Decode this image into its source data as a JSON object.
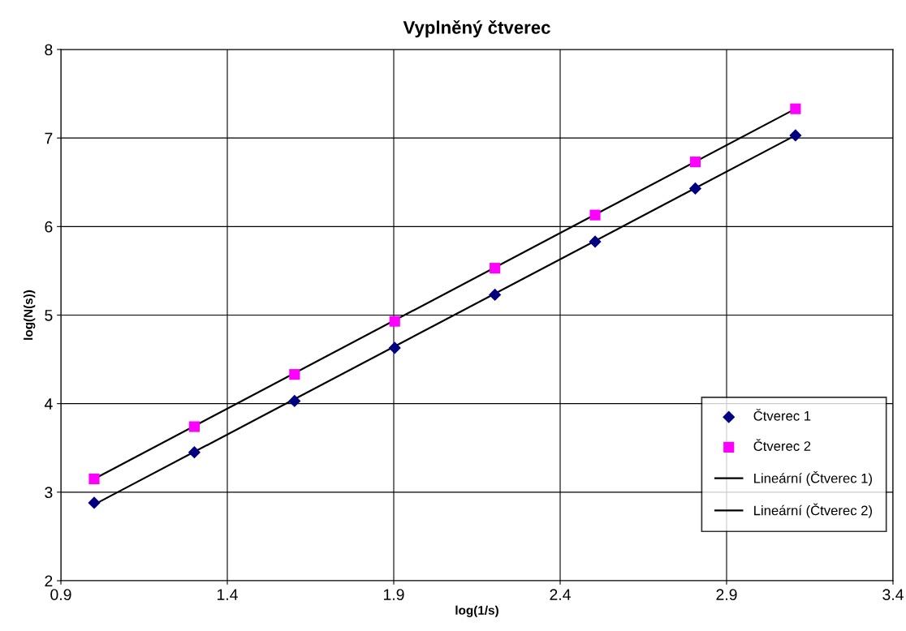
{
  "chart_data": {
    "type": "scatter",
    "title": "Vyplněný čtverec",
    "xlabel": "log(1/s)",
    "ylabel": "log(N(s))",
    "xlim": [
      0.9,
      3.4
    ],
    "xticks": [
      0.9,
      1.4,
      1.9,
      2.4,
      2.9,
      3.4
    ],
    "ylim": [
      2,
      8
    ],
    "yticks": [
      2,
      3,
      4,
      5,
      6,
      7,
      8
    ],
    "grid": true,
    "legend": "bottom right",
    "series": [
      {
        "name": "Čtverec 1",
        "marker": "diamond",
        "color": "#000080",
        "x": [
          1.0,
          1.301,
          1.602,
          1.903,
          2.204,
          2.505,
          2.806,
          3.107
        ],
        "values": [
          2.88,
          3.45,
          4.03,
          4.63,
          5.23,
          5.83,
          6.43,
          7.03
        ]
      },
      {
        "name": "Čtverec 2",
        "marker": "square",
        "color": "#ff00ff",
        "x": [
          1.0,
          1.301,
          1.602,
          1.903,
          2.204,
          2.505,
          2.806,
          3.107
        ],
        "values": [
          3.15,
          3.74,
          4.33,
          4.93,
          5.53,
          6.13,
          6.73,
          7.33
        ]
      },
      {
        "name": "Lineární (Čtverec 1)",
        "type": "line",
        "color": "#000000",
        "x": [
          1.0,
          3.107
        ],
        "values": [
          2.86,
          7.03
        ]
      },
      {
        "name": "Lineární (Čtverec 2)",
        "type": "line",
        "color": "#000000",
        "x": [
          1.0,
          3.107
        ],
        "values": [
          3.15,
          7.33
        ]
      }
    ]
  }
}
